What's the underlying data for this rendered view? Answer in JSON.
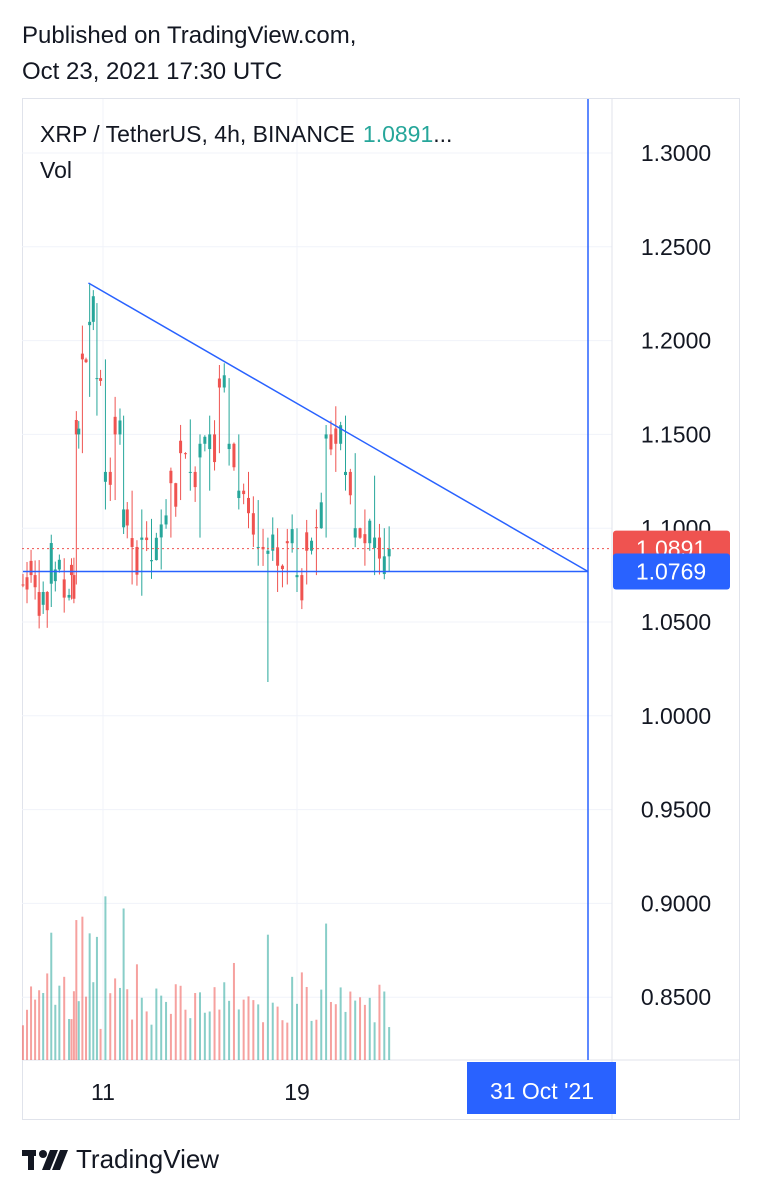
{
  "header": {
    "published_line1": "Published on TradingView.com,",
    "published_line2": "Oct 23, 2021 17:30 UTC"
  },
  "legend": {
    "symbol": "XRP / TetherUS, 4h, BINANCE",
    "last_price": "1.0891",
    "ellipsis": "...",
    "volume_label": "Vol"
  },
  "footer": {
    "brand": "TradingView"
  },
  "colors": {
    "up": "#26a69a",
    "down": "#ef5350",
    "drawing": "#2962ff",
    "grid": "#f0f3fa",
    "axis_text": "#131722"
  },
  "chart_data": {
    "type": "candlestick",
    "symbol": "XRP / TetherUS",
    "interval": "4h",
    "exchange": "BINANCE",
    "y_axis": {
      "ticks": [
        "1.3000",
        "1.2500",
        "1.2000",
        "1.1500",
        "1.1000",
        "1.0500",
        "1.0000",
        "0.9500",
        "0.9000",
        "0.8500"
      ],
      "range": [
        0.82,
        1.33
      ]
    },
    "x_axis": {
      "ticks": [
        {
          "label": "11",
          "day": 11
        },
        {
          "label": "19",
          "day": 19
        }
      ],
      "range_days": [
        7.7,
        27.4
      ]
    },
    "price_labels": [
      {
        "value": "1.0891",
        "color": "#ef5350"
      },
      {
        "value": "1.0769",
        "color": "#2962ff"
      }
    ],
    "crosshair": {
      "date_label": "31 Oct '21",
      "day": 31,
      "price": 1.0769
    },
    "trendlines": [
      {
        "from": {
          "day": 10.4,
          "price": 1.2307
        },
        "to": {
          "day": 31,
          "price": 1.0769
        }
      },
      {
        "from": {
          "day": 7.7,
          "price": 1.0769
        },
        "to": {
          "day": 31,
          "price": 1.0769
        }
      }
    ],
    "current_price_line": 1.0891,
    "candles_ohlc_summary": [
      [
        7.7,
        1.07,
        1.082,
        1.06,
        1.075
      ],
      [
        8.2,
        1.075,
        1.083,
        1.06,
        1.066
      ],
      [
        8.7,
        1.066,
        1.091,
        1.058,
        1.078
      ],
      [
        9.2,
        1.078,
        1.084,
        1.055,
        1.063
      ],
      [
        9.6,
        1.063,
        1.08,
        1.062,
        1.075
      ],
      [
        9.8,
        1.075,
        1.16,
        1.07,
        1.15
      ],
      [
        10.0,
        1.15,
        1.208,
        1.14,
        1.19
      ],
      [
        10.3,
        1.19,
        1.23,
        1.17,
        1.21
      ],
      [
        10.6,
        1.21,
        1.22,
        1.16,
        1.18
      ],
      [
        10.9,
        1.18,
        1.19,
        1.11,
        1.13
      ],
      [
        11.3,
        1.13,
        1.17,
        1.115,
        1.15
      ],
      [
        11.7,
        1.15,
        1.16,
        1.1,
        1.11
      ],
      [
        12.0,
        1.11,
        1.12,
        1.07,
        1.09
      ],
      [
        12.4,
        1.09,
        1.11,
        1.064,
        1.095
      ],
      [
        12.8,
        1.095,
        1.105,
        1.073,
        1.083
      ],
      [
        13.2,
        1.083,
        1.11,
        1.078,
        1.102
      ],
      [
        13.6,
        1.102,
        1.13,
        1.095,
        1.124
      ],
      [
        14.0,
        1.124,
        1.15,
        1.115,
        1.14
      ],
      [
        14.4,
        1.14,
        1.158,
        1.12,
        1.13
      ],
      [
        14.8,
        1.13,
        1.15,
        1.095,
        1.145
      ],
      [
        15.2,
        1.145,
        1.16,
        1.12,
        1.15
      ],
      [
        15.6,
        1.15,
        1.187,
        1.14,
        1.175
      ],
      [
        16.0,
        1.175,
        1.18,
        1.135,
        1.145
      ],
      [
        16.4,
        1.145,
        1.15,
        1.11,
        1.12
      ],
      [
        16.8,
        1.12,
        1.13,
        1.1,
        1.108
      ],
      [
        17.2,
        1.108,
        1.115,
        1.08,
        1.09
      ],
      [
        17.6,
        1.09,
        1.095,
        1.018,
        1.088
      ],
      [
        18.0,
        1.088,
        1.1,
        1.066,
        1.08
      ],
      [
        18.4,
        1.08,
        1.098,
        1.07,
        1.092
      ],
      [
        18.8,
        1.092,
        1.1,
        1.066,
        1.075
      ],
      [
        19.2,
        1.075,
        1.095,
        1.07,
        1.088
      ],
      [
        19.6,
        1.088,
        1.11,
        1.075,
        1.1
      ],
      [
        20.0,
        1.1,
        1.155,
        1.095,
        1.15
      ],
      [
        20.4,
        1.15,
        1.165,
        1.13,
        1.145
      ],
      [
        20.8,
        1.145,
        1.16,
        1.12,
        1.13
      ],
      [
        21.2,
        1.13,
        1.14,
        1.09,
        1.1
      ],
      [
        21.6,
        1.1,
        1.11,
        1.08,
        1.092
      ],
      [
        22.0,
        1.092,
        1.128,
        1.075,
        1.095
      ],
      [
        22.4,
        1.095,
        1.1,
        1.078,
        1.085
      ],
      [
        22.8,
        1.085,
        1.101,
        1.077,
        1.089
      ]
    ]
  }
}
